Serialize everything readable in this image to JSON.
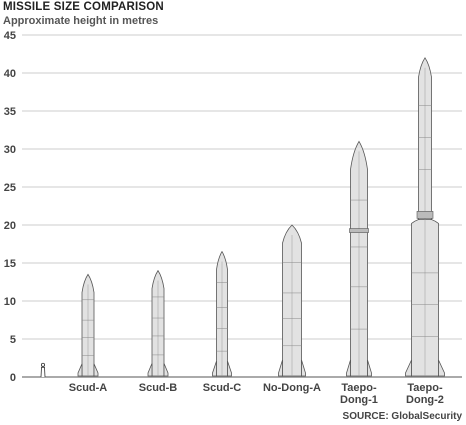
{
  "header": {
    "title": "MISSILE SIZE COMPARISON",
    "subtitle": "Approximate height in metres"
  },
  "footer": {
    "source": "SOURCE: GlobalSecurity"
  },
  "colors": {
    "gridline": "#cccccc",
    "missile_fill": "#e2e2e2",
    "missile_stroke": "#555555",
    "axis_text": "#444444"
  },
  "chart_data": {
    "type": "bar",
    "title": "MISSILE SIZE COMPARISON",
    "ylabel": "Approximate height in metres",
    "ylim": [
      0,
      45
    ],
    "yticks": [
      0,
      5,
      10,
      15,
      20,
      25,
      30,
      35,
      40,
      45
    ],
    "grid": true,
    "categories": [
      "Scud-A",
      "Scud-B",
      "Scud-C",
      "No-Dong-A",
      "Taepo-Dong-1",
      "Taepo-Dong-2"
    ],
    "category_labels": [
      [
        "Scud-A"
      ],
      [
        "Scud-B"
      ],
      [
        "Scud-C"
      ],
      [
        "No-Dong-A"
      ],
      [
        "Taepo-",
        "Dong-1"
      ],
      [
        "Taepo-",
        "Dong-2"
      ]
    ],
    "values": [
      13.5,
      14,
      16.5,
      20,
      31,
      42
    ],
    "scale_reference": {
      "icon": "human-figure-icon",
      "height": 1.8
    }
  }
}
